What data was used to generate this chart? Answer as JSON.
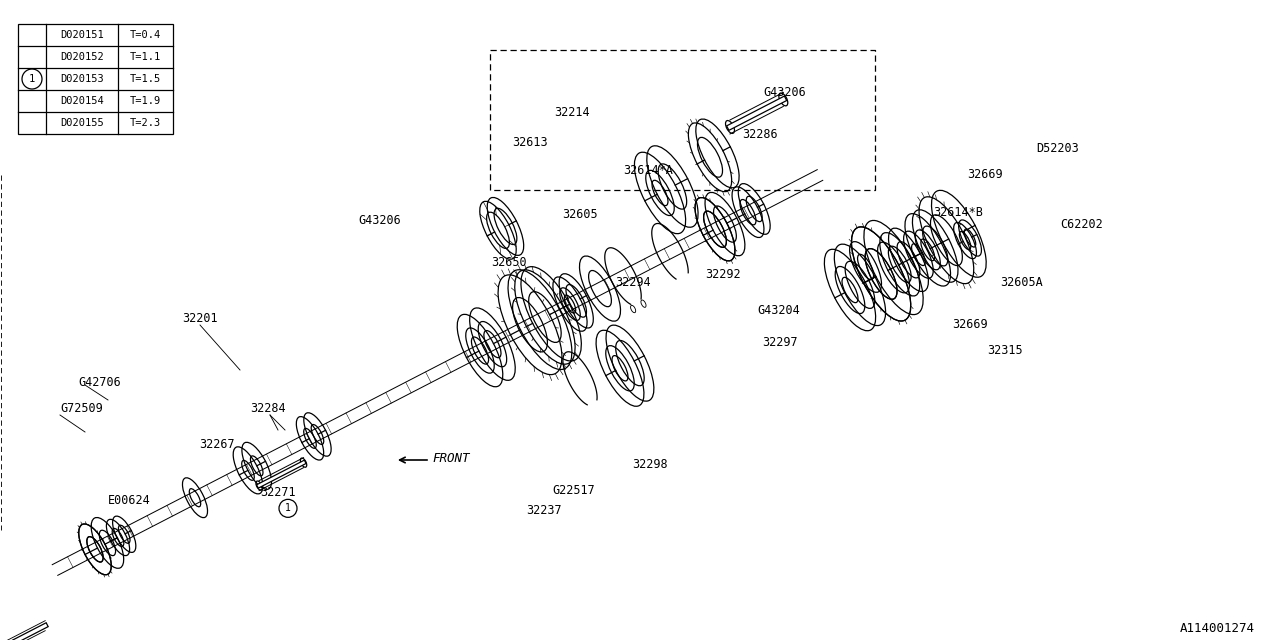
{
  "bg_color": "#ffffff",
  "line_color": "#000000",
  "diagram_id": "A114001274",
  "table_data": {
    "rows": [
      [
        "D020151",
        "T=0.4"
      ],
      [
        "D020152",
        "T=1.1"
      ],
      [
        "D020153",
        "T=1.5"
      ],
      [
        "D020154",
        "T=1.9"
      ],
      [
        "D020155",
        "T=2.3"
      ]
    ]
  }
}
